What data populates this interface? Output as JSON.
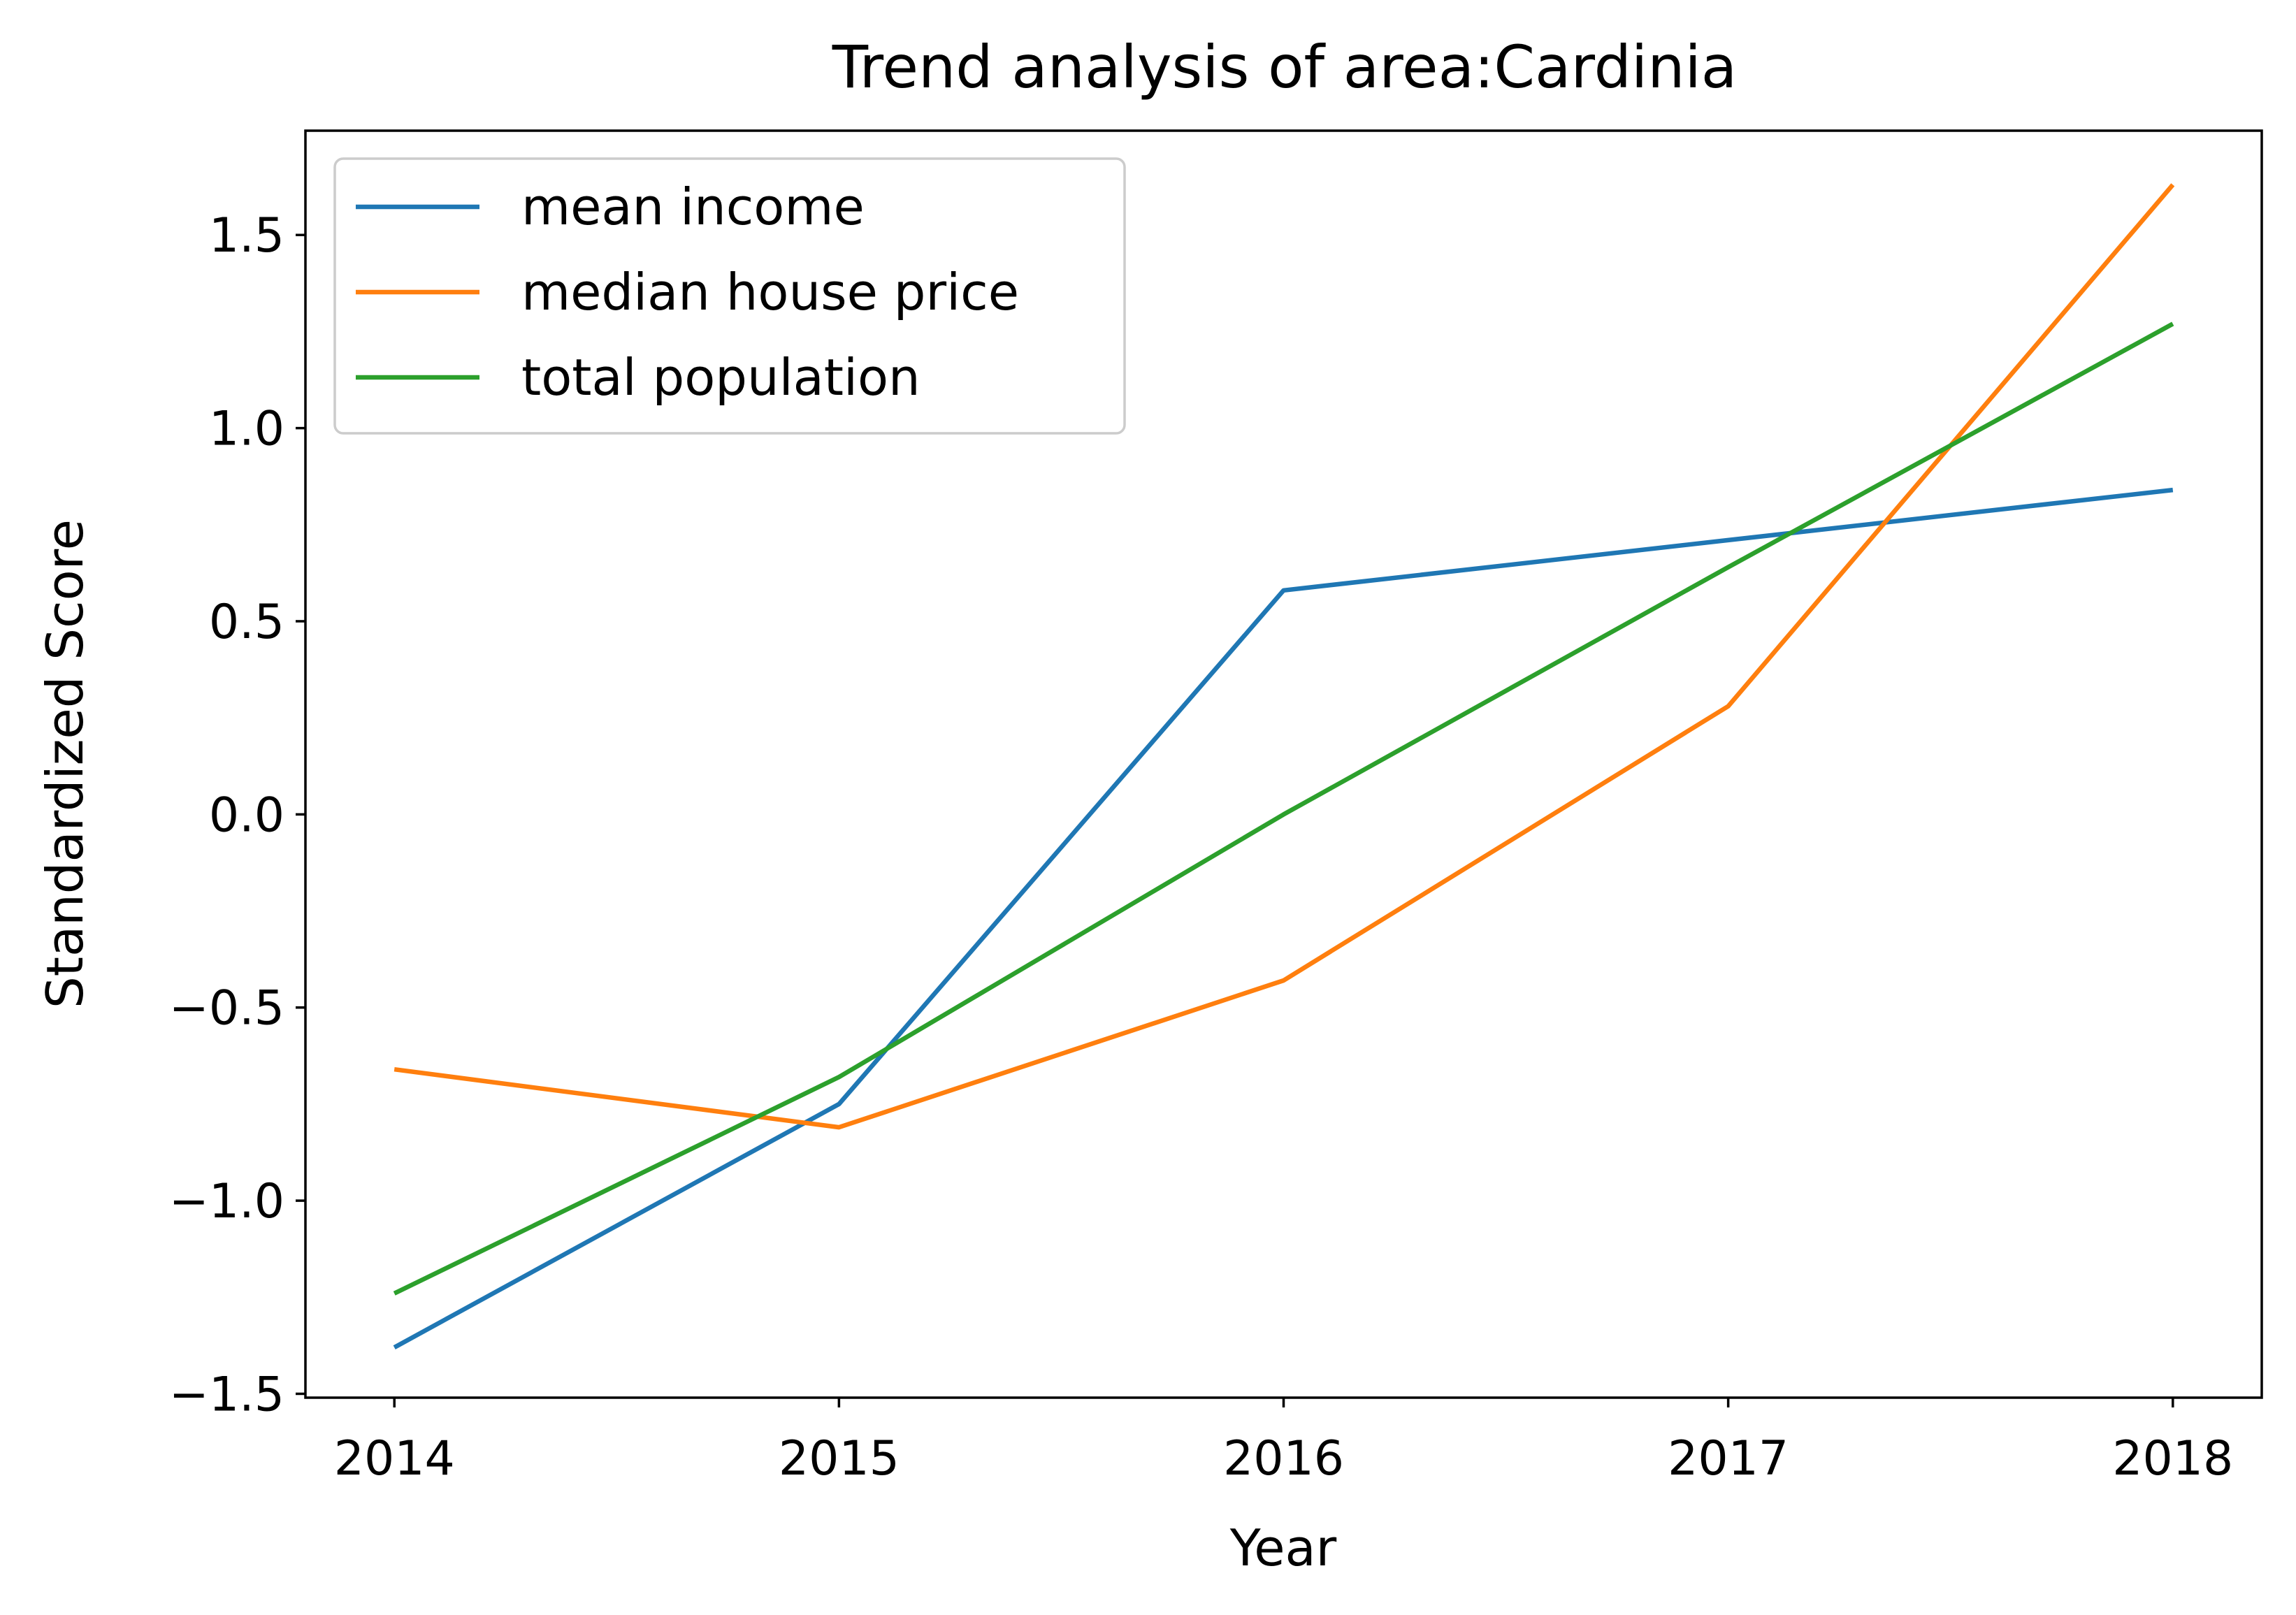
{
  "chart_data": {
    "type": "line",
    "title": "Trend analysis of area:Cardinia",
    "xlabel": "Year",
    "ylabel": "Standardized Score",
    "x": [
      2014,
      2015,
      2016,
      2017,
      2018
    ],
    "x_tick_labels": [
      "2014",
      "2015",
      "2016",
      "2017",
      "2018"
    ],
    "y_ticks": [
      -1.5,
      -1.0,
      -0.5,
      0.0,
      0.5,
      1.0,
      1.5
    ],
    "y_tick_labels": [
      "−1.5",
      "−1.0",
      "−0.5",
      "0.0",
      "0.5",
      "1.0",
      "1.5"
    ],
    "xlim": [
      2013.8,
      2018.2
    ],
    "ylim": [
      -1.51,
      1.77
    ],
    "grid": false,
    "legend_position": "top-left",
    "series": [
      {
        "name": "mean income",
        "color": "#1f77b4",
        "values": [
          -1.38,
          -0.75,
          0.58,
          0.71,
          0.84
        ]
      },
      {
        "name": "median house price",
        "color": "#ff7f0e",
        "values": [
          -0.66,
          -0.81,
          -0.43,
          0.28,
          1.63
        ]
      },
      {
        "name": "total population",
        "color": "#2ca02c",
        "values": [
          -1.24,
          -0.68,
          0.0,
          0.64,
          1.27
        ]
      }
    ]
  }
}
